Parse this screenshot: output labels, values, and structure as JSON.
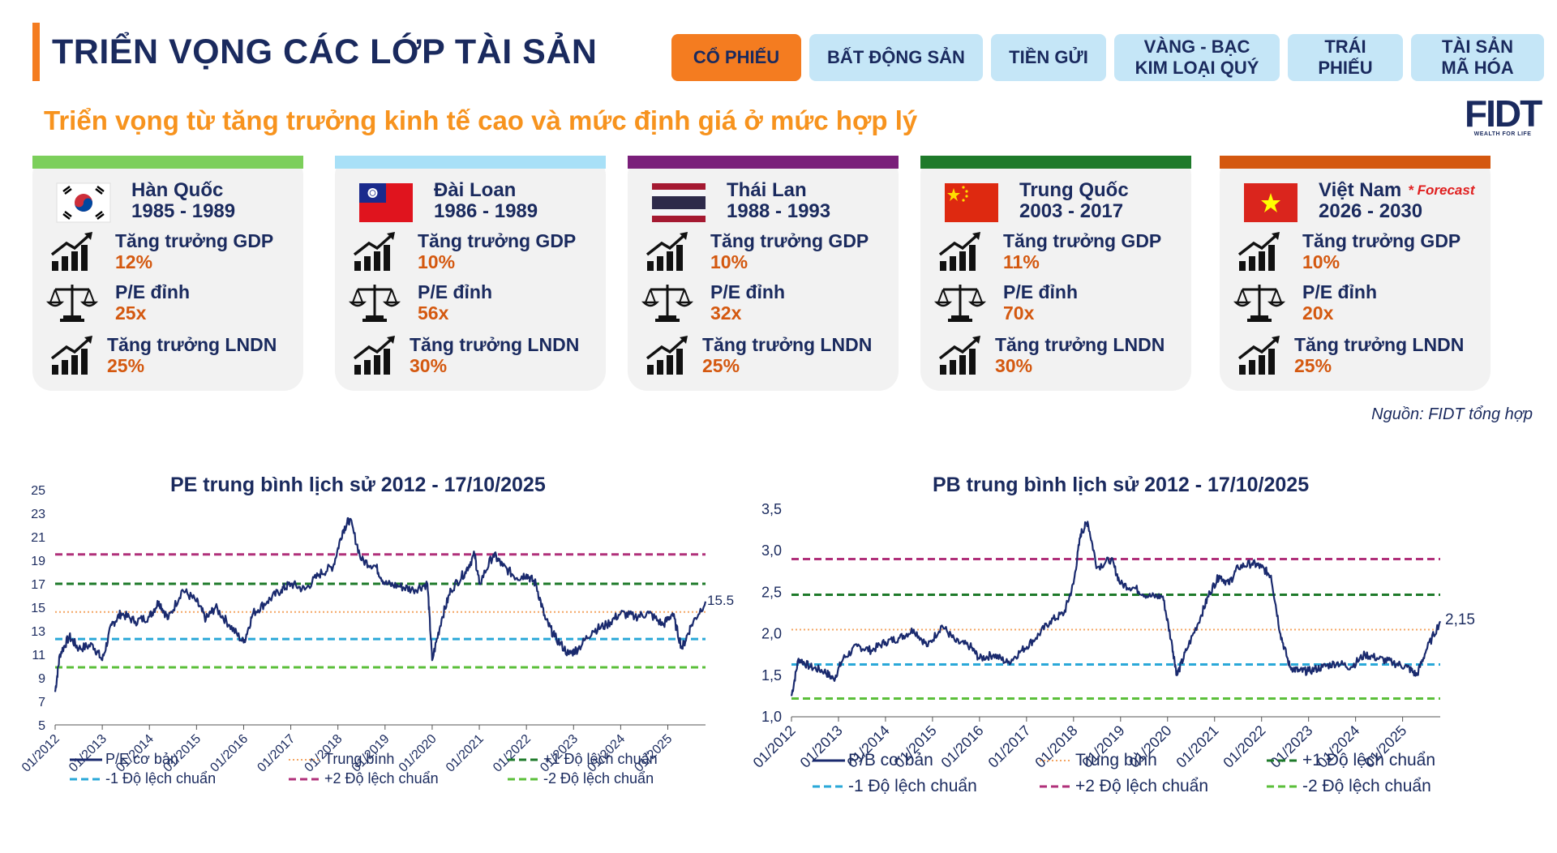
{
  "header": {
    "title": "TRIỂN VỌNG CÁC LỚP TÀI SẢN",
    "tabs": [
      {
        "label": "CỔ PHIẾU",
        "active": true
      },
      {
        "label": "BẤT ĐỘNG SẢN",
        "active": false
      },
      {
        "label": "TIỀN GỬI",
        "active": false
      },
      {
        "label": "VÀNG - BẠC\nKIM LOẠI QUÝ",
        "active": false
      },
      {
        "label": "TRÁI\nPHIẾU",
        "active": false
      },
      {
        "label": "TÀI SẢN\nMÃ HÓA",
        "active": false
      }
    ],
    "subtitle": "Triển vọng từ tăng trưởng kinh tế cao và mức định giá ở mức hợp lý",
    "logo_text": "FIDT",
    "logo_tagline": "WEALTH FOR LIFE"
  },
  "colors": {
    "accent": "#f47c20",
    "navy": "#1a2a5e",
    "value_orange": "#d4580f",
    "tab_bg": "#c5e6f7"
  },
  "cards": [
    {
      "country": "Hàn Quốc",
      "period": "1985 - 1989",
      "flag": "korea-flag",
      "cap_color": "#7ccf5b",
      "gdp_label": "Tăng trưởng GDP",
      "gdp": "12%",
      "pe_label": "P/E đỉnh",
      "pe": "25x",
      "lndn_label": "Tăng trưởng LNDN",
      "lndn": "25%",
      "forecast": ""
    },
    {
      "country": "Đài Loan",
      "period": "1986 - 1989",
      "flag": "taiwan-flag",
      "cap_color": "#a8e0f7",
      "gdp_label": "Tăng trưởng GDP",
      "gdp": "10%",
      "pe_label": "P/E đỉnh",
      "pe": "56x",
      "lndn_label": "Tăng trưởng LNDN",
      "lndn": "30%",
      "forecast": ""
    },
    {
      "country": "Thái Lan",
      "period": "1988 - 1993",
      "flag": "thailand-flag",
      "cap_color": "#7a1f7a",
      "gdp_label": "Tăng trưởng GDP",
      "gdp": "10%",
      "pe_label": "P/E đỉnh",
      "pe": "32x",
      "lndn_label": "Tăng trưởng LNDN",
      "lndn": "25%",
      "forecast": ""
    },
    {
      "country": "Trung Quốc",
      "period": "2003 - 2017",
      "flag": "china-flag",
      "cap_color": "#1e7a2a",
      "gdp_label": "Tăng trưởng GDP",
      "gdp": "11%",
      "pe_label": "P/E đỉnh",
      "pe": "70x",
      "lndn_label": "Tăng trưởng LNDN",
      "lndn": "30%",
      "forecast": ""
    },
    {
      "country": "Việt Nam",
      "period": "2026 - 2030",
      "flag": "vietnam-flag",
      "cap_color": "#d4580f",
      "gdp_label": "Tăng trưởng GDP",
      "gdp": "10%",
      "pe_label": "P/E đỉnh",
      "pe": "20x",
      "lndn_label": "Tăng trưởng LNDN",
      "lndn": "25%",
      "forecast": "* Forecast"
    }
  ],
  "source": "Nguồn: FIDT tổng hợp",
  "chart_data": [
    {
      "type": "line",
      "title": "PE trung bình lịch sử 2012 - 17/10/2025",
      "xlabel": "",
      "ylabel": "",
      "x_ticks": [
        "01/2012",
        "01/2013",
        "01/2014",
        "01/2015",
        "01/2016",
        "01/2017",
        "01/2018",
        "01/2019",
        "01/2020",
        "01/2021",
        "01/2022",
        "01/2023",
        "01/2024",
        "01/2025"
      ],
      "y_ticks": [
        "25",
        "23",
        "21",
        "19",
        "17",
        "15",
        "13",
        "11",
        "9",
        "7",
        "5"
      ],
      "ylim": [
        5,
        25
      ],
      "end_label": "15.5",
      "series": [
        {
          "name": "P/E cơ bản",
          "color": "#1a2a6e",
          "style": "solid",
          "x": [
            2012.0,
            2012.1,
            2012.3,
            2012.5,
            2012.8,
            2013.0,
            2013.2,
            2013.4,
            2013.7,
            2014.0,
            2014.2,
            2014.4,
            2014.7,
            2015.0,
            2015.2,
            2015.4,
            2015.7,
            2016.0,
            2016.2,
            2016.5,
            2016.8,
            2017.0,
            2017.3,
            2017.6,
            2017.9,
            2018.1,
            2018.25,
            2018.5,
            2018.8,
            2019.0,
            2019.3,
            2019.6,
            2019.9,
            2020.0,
            2020.2,
            2020.4,
            2020.7,
            2020.9,
            2021.0,
            2021.3,
            2021.5,
            2021.8,
            2022.0,
            2022.2,
            2022.4,
            2022.6,
            2022.9,
            2023.1,
            2023.4,
            2023.7,
            2024.0,
            2024.3,
            2024.6,
            2024.9,
            2025.1,
            2025.3,
            2025.5,
            2025.8
          ],
          "y": [
            7.8,
            11.0,
            12.5,
            11.5,
            11.8,
            10.5,
            13.5,
            14.5,
            13.8,
            14.2,
            15.5,
            14.0,
            16.5,
            15.5,
            14.0,
            15.0,
            13.5,
            12.0,
            14.5,
            15.5,
            16.5,
            17.0,
            16.5,
            17.8,
            18.5,
            21.5,
            22.5,
            19.0,
            18.5,
            17.0,
            16.8,
            16.5,
            17.0,
            10.5,
            14.0,
            16.5,
            18.0,
            19.5,
            17.0,
            19.5,
            18.5,
            17.5,
            17.8,
            17.0,
            14.0,
            12.5,
            11.0,
            11.5,
            13.0,
            13.5,
            14.5,
            14.2,
            14.5,
            13.5,
            14.5,
            11.5,
            13.5,
            15.5
          ]
        },
        {
          "name": "Trung bình",
          "value": 14.6,
          "color": "#f4a460",
          "style": "dotted"
        },
        {
          "name": "+1 Độ lệch chuẩn",
          "value": 17.0,
          "color": "#1e7a2a",
          "style": "dashed"
        },
        {
          "name": "-1 Độ lệch chuẩn",
          "value": 12.3,
          "color": "#2aa8d8",
          "style": "dashed"
        },
        {
          "name": "+2 Độ lệch chuẩn",
          "value": 19.5,
          "color": "#b0307a",
          "style": "dashed"
        },
        {
          "name": "-2 Độ lệch chuẩn",
          "value": 9.9,
          "color": "#5bbf3a",
          "style": "dashed"
        }
      ]
    },
    {
      "type": "line",
      "title": "PB trung bình lịch sử 2012 - 17/10/2025",
      "xlabel": "",
      "ylabel": "",
      "x_ticks": [
        "01/2012",
        "01/2013",
        "01/2014",
        "01/2015",
        "01/2016",
        "01/2017",
        "01/2018",
        "01/2019",
        "01/2020",
        "01/2021",
        "01/2022",
        "01/2023",
        "01/2024",
        "01/2025"
      ],
      "y_ticks": [
        "3,5",
        "3,0",
        "2,5",
        "2,0",
        "1,5",
        "1,0"
      ],
      "ylim": [
        1.0,
        3.5
      ],
      "end_label": "2,15",
      "series": [
        {
          "name": "P/B cơ bản",
          "color": "#1a2a6e",
          "style": "solid",
          "x": [
            2012.0,
            2012.15,
            2012.4,
            2012.7,
            2012.9,
            2013.1,
            2013.4,
            2013.7,
            2014.0,
            2014.3,
            2014.6,
            2014.9,
            2015.2,
            2015.5,
            2015.8,
            2016.0,
            2016.3,
            2016.6,
            2016.9,
            2017.2,
            2017.5,
            2017.8,
            2018.0,
            2018.15,
            2018.3,
            2018.5,
            2018.8,
            2019.0,
            2019.3,
            2019.6,
            2019.9,
            2020.1,
            2020.2,
            2020.4,
            2020.7,
            2020.9,
            2021.1,
            2021.3,
            2021.5,
            2021.8,
            2022.0,
            2022.2,
            2022.4,
            2022.6,
            2022.8,
            2023.0,
            2023.3,
            2023.6,
            2023.9,
            2024.2,
            2024.5,
            2024.8,
            2025.1,
            2025.3,
            2025.5,
            2025.8
          ],
          "y": [
            1.25,
            1.7,
            1.6,
            1.55,
            1.45,
            1.7,
            1.85,
            1.8,
            1.9,
            1.95,
            2.05,
            1.85,
            2.1,
            1.9,
            1.85,
            1.7,
            1.75,
            1.65,
            1.8,
            1.95,
            2.15,
            2.25,
            2.6,
            3.2,
            3.35,
            2.8,
            2.9,
            2.6,
            2.55,
            2.45,
            2.45,
            1.85,
            1.5,
            1.8,
            2.2,
            2.5,
            2.7,
            2.6,
            2.8,
            2.85,
            2.8,
            2.7,
            2.0,
            1.6,
            1.55,
            1.55,
            1.6,
            1.65,
            1.6,
            1.75,
            1.7,
            1.65,
            1.6,
            1.5,
            1.8,
            2.15
          ]
        },
        {
          "name": "Trung bình",
          "value": 2.05,
          "color": "#f4a460",
          "style": "dotted"
        },
        {
          "name": "+1 Độ lệch chuẩn",
          "value": 2.47,
          "color": "#1e7a2a",
          "style": "dashed"
        },
        {
          "name": "-1 Độ lệch chuẩn",
          "value": 1.63,
          "color": "#2aa8d8",
          "style": "dashed"
        },
        {
          "name": "+2 Độ lệch chuẩn",
          "value": 2.9,
          "color": "#b0307a",
          "style": "dashed"
        },
        {
          "name": "-2 Độ lệch chuẩn",
          "value": 1.22,
          "color": "#5bbf3a",
          "style": "dashed"
        }
      ]
    }
  ]
}
